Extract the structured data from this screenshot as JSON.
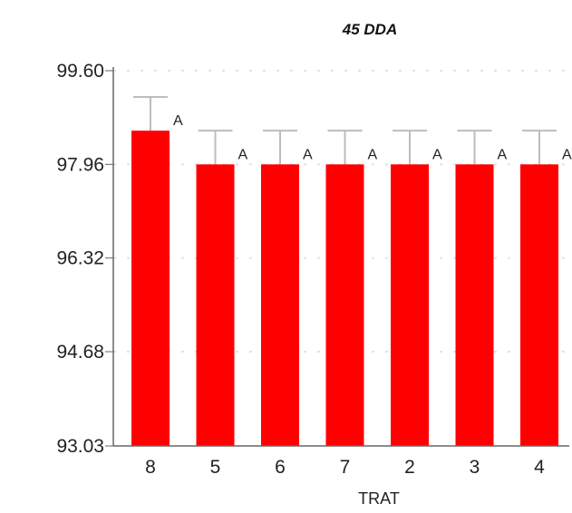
{
  "chart_data": {
    "type": "bar",
    "title": "45 DDA",
    "xlabel": "TRAT",
    "ylabel": "",
    "categories": [
      "8",
      "5",
      "6",
      "7",
      "2",
      "3",
      "4"
    ],
    "values": [
      98.55,
      97.96,
      97.96,
      97.96,
      97.96,
      97.96,
      97.96
    ],
    "error_upper": [
      99.14,
      98.55,
      98.55,
      98.55,
      98.55,
      98.55,
      98.55
    ],
    "group_letters": [
      "A",
      "A",
      "A",
      "A",
      "A",
      "A",
      "A"
    ],
    "ylim": [
      93.03,
      99.6
    ],
    "yticks": [
      "93.03",
      "94.68",
      "96.32",
      "97.96",
      "99.60"
    ],
    "grid": true,
    "bar_color": "#ff0000",
    "error_color": "#bdbdbd"
  }
}
